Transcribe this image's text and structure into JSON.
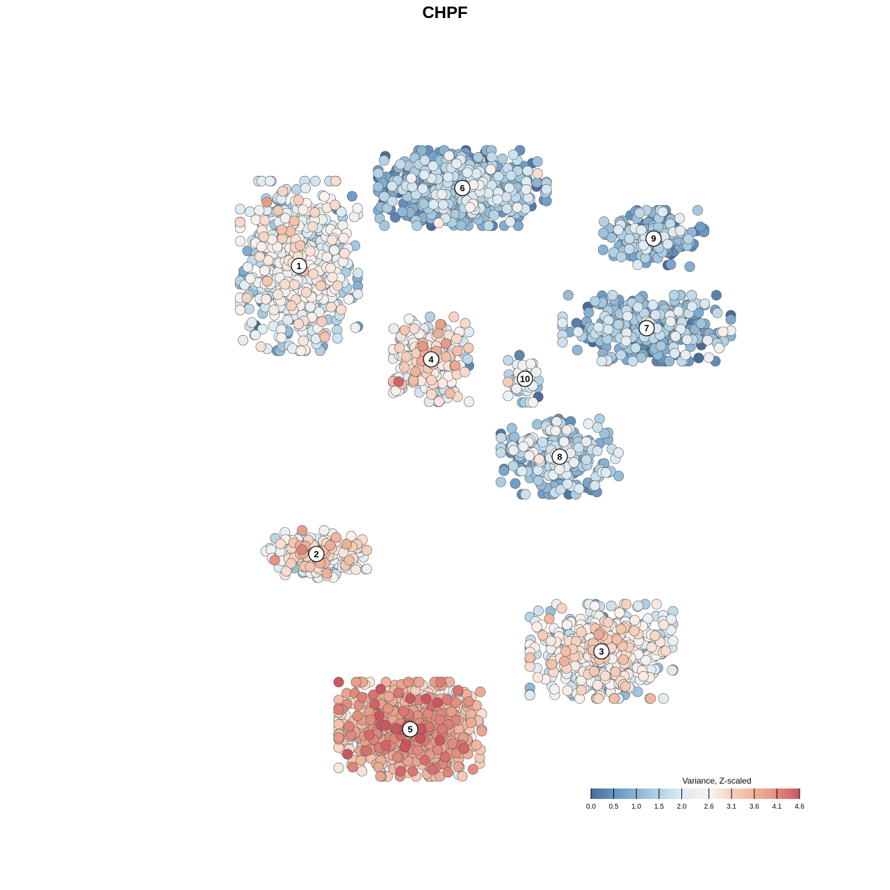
{
  "chart_data": {
    "type": "scatter",
    "title": "CHPF",
    "xlabel": "",
    "ylabel": "",
    "grid": false,
    "legend": {
      "title": "Variance, Z-scaled",
      "placement": "bottom-right",
      "range": [
        0.0,
        4.6
      ],
      "ticks": [
        "0.0",
        "0.5",
        "1.0",
        "1.5",
        "2.0",
        "2.6",
        "3.1",
        "3.6",
        "4.1",
        "4.6"
      ],
      "colors": [
        "#4a6c99",
        "#6f9fc9",
        "#a4c8df",
        "#dceaf2",
        "#faf2ee",
        "#f4c6b0",
        "#e89c86",
        "#cc5660"
      ]
    },
    "clusters": [
      {
        "label": "1",
        "x": -0.42,
        "y": 0.46,
        "spread": [
          0.14,
          0.18
        ],
        "mean": 1.9,
        "n": 700
      },
      {
        "label": "6",
        "x": 0.05,
        "y": 0.66,
        "spread": [
          0.2,
          0.08
        ],
        "mean": 1.0,
        "n": 650
      },
      {
        "label": "4",
        "x": -0.04,
        "y": 0.22,
        "spread": [
          0.09,
          0.09
        ],
        "mean": 2.3,
        "n": 300
      },
      {
        "label": "9",
        "x": 0.6,
        "y": 0.53,
        "spread": [
          0.12,
          0.06
        ],
        "mean": 0.9,
        "n": 220
      },
      {
        "label": "7",
        "x": 0.58,
        "y": 0.3,
        "spread": [
          0.2,
          0.07
        ],
        "mean": 1.0,
        "n": 320
      },
      {
        "label": "10",
        "x": 0.23,
        "y": 0.17,
        "spread": [
          0.04,
          0.05
        ],
        "mean": 1.6,
        "n": 60
      },
      {
        "label": "8",
        "x": 0.33,
        "y": -0.03,
        "spread": [
          0.14,
          0.08
        ],
        "mean": 1.2,
        "n": 260
      },
      {
        "label": "2",
        "x": -0.37,
        "y": -0.28,
        "spread": [
          0.12,
          0.05
        ],
        "mean": 2.4,
        "n": 220
      },
      {
        "label": "3",
        "x": 0.45,
        "y": -0.53,
        "spread": [
          0.17,
          0.1
        ],
        "mean": 2.2,
        "n": 600
      },
      {
        "label": "5",
        "x": -0.1,
        "y": -0.73,
        "spread": [
          0.17,
          0.1
        ],
        "mean": 3.3,
        "n": 900
      }
    ]
  }
}
